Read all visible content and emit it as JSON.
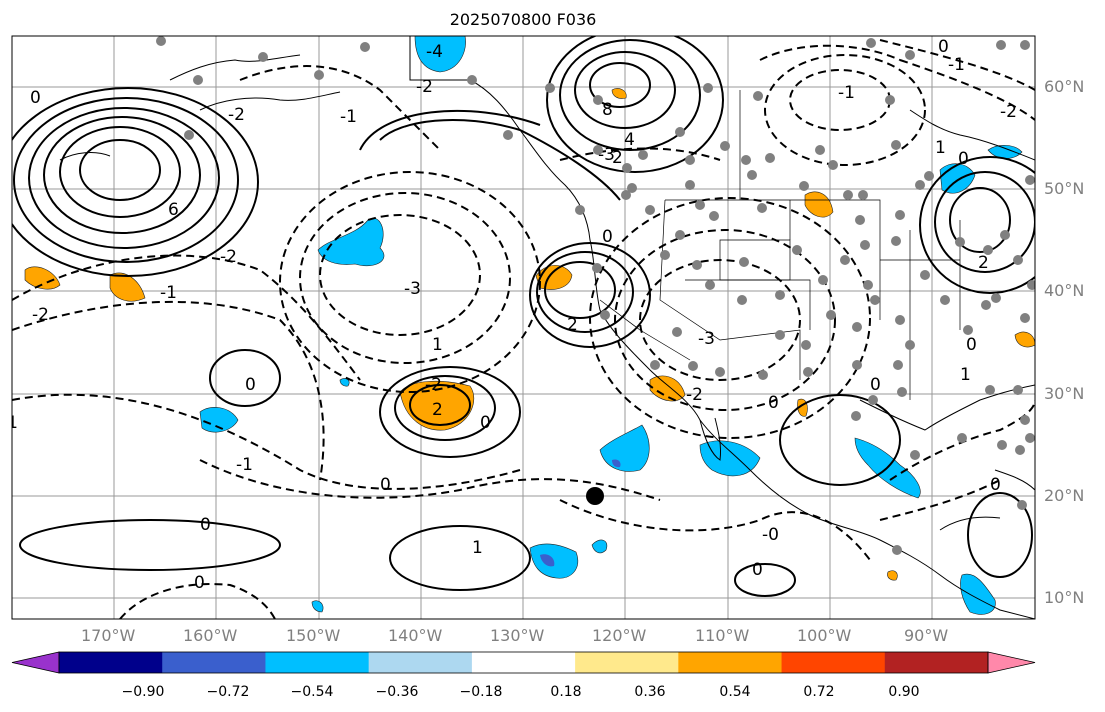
{
  "title": "2025070800 F036",
  "map": {
    "lon_range": [
      -180,
      -80
    ],
    "lat_range": [
      8,
      65
    ],
    "latitude_labels": [
      "60°N",
      "50°N",
      "40°N",
      "30°N",
      "20°N",
      "10°N"
    ],
    "longitude_labels": [
      "170°W",
      "160°W",
      "150°W",
      "140°W",
      "130°W",
      "120°W",
      "110°W",
      "100°W",
      "90°W"
    ],
    "contour_labels": [
      "-4",
      "-2",
      "0",
      "-1",
      "-2",
      "8",
      "6",
      "4",
      "2",
      "-3",
      "0",
      "-2",
      "-1",
      "-3",
      "2",
      "-2",
      "-3",
      "0",
      "-2",
      "0",
      "-1",
      "1",
      "2",
      "-2",
      "0",
      "1",
      "0",
      "-1",
      "0",
      "-1",
      "2",
      "0",
      "1",
      "0",
      "-0",
      "0",
      "0",
      "1",
      "0",
      "0",
      "0",
      "-2",
      "-1"
    ],
    "marker_color": "#808080",
    "center_marker_color": "#000000"
  },
  "colorbar": {
    "ticks": [
      "−0.90",
      "−0.72",
      "−0.54",
      "−0.36",
      "−0.18",
      "0.18",
      "0.36",
      "0.54",
      "0.72",
      "0.90"
    ],
    "colors": [
      "#9932cc",
      "#00008b",
      "#3a5fcd",
      "#00bfff",
      "#add8f0",
      "#ffffff",
      "#ffe98c",
      "#ffa500",
      "#ff4500",
      "#b22222",
      "#ff88aa"
    ]
  }
}
